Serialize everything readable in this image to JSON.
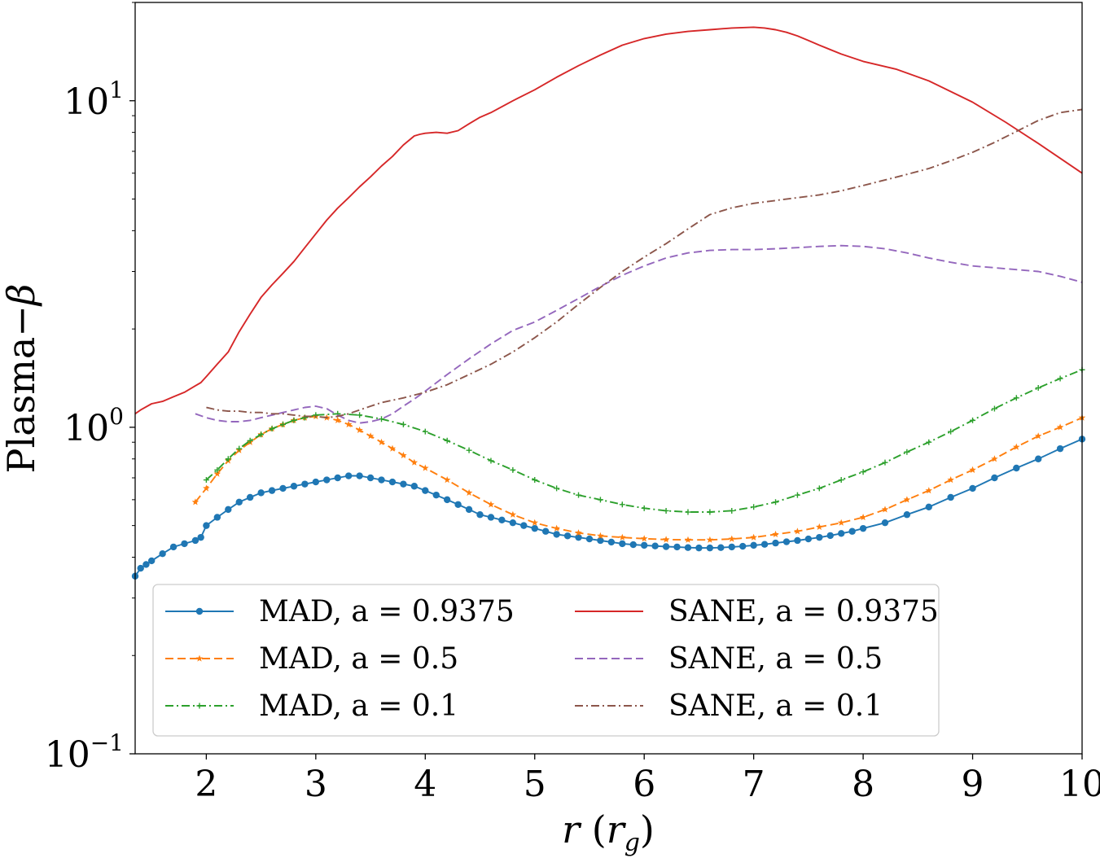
{
  "chart_data": {
    "type": "line",
    "xlabel": "r (r_g)",
    "ylabel": "Plasma−β",
    "xlim": [
      1.35,
      10
    ],
    "ylim": [
      0.1,
      20
    ],
    "yscale": "log",
    "xticks": [
      "2",
      "3",
      "4",
      "5",
      "6",
      "7",
      "8",
      "9",
      "10"
    ],
    "yticks": [
      {
        "base": "10",
        "exp": "1",
        "value": 10
      },
      {
        "base": "10",
        "exp": "0",
        "value": 1
      },
      {
        "base": "10",
        "exp": "−1",
        "value": 0.1
      }
    ],
    "grid": false,
    "legend": {
      "position": "lower-center",
      "columns": 2
    },
    "series": [
      {
        "name": "MAD, a = 0.9375",
        "color": "#1f77b4",
        "dash": "solid",
        "marker": "circle",
        "x": [
          1.35,
          1.4,
          1.45,
          1.5,
          1.6,
          1.7,
          1.8,
          1.9,
          1.95,
          2.0,
          2.1,
          2.2,
          2.3,
          2.4,
          2.5,
          2.6,
          2.7,
          2.8,
          2.9,
          3.0,
          3.1,
          3.2,
          3.3,
          3.4,
          3.5,
          3.6,
          3.7,
          3.8,
          3.9,
          4.0,
          4.1,
          4.2,
          4.3,
          4.4,
          4.5,
          4.6,
          4.7,
          4.8,
          4.9,
          5.0,
          5.1,
          5.2,
          5.3,
          5.4,
          5.5,
          5.6,
          5.7,
          5.8,
          5.9,
          6.0,
          6.1,
          6.2,
          6.3,
          6.4,
          6.5,
          6.6,
          6.7,
          6.8,
          6.9,
          7.0,
          7.1,
          7.2,
          7.3,
          7.4,
          7.5,
          7.6,
          7.7,
          7.8,
          7.9,
          8.0,
          8.2,
          8.4,
          8.6,
          8.8,
          9.0,
          9.2,
          9.4,
          9.6,
          9.8,
          10.0
        ],
        "y": [
          0.35,
          0.37,
          0.38,
          0.39,
          0.41,
          0.43,
          0.44,
          0.45,
          0.46,
          0.5,
          0.53,
          0.56,
          0.59,
          0.61,
          0.63,
          0.64,
          0.65,
          0.66,
          0.67,
          0.68,
          0.69,
          0.7,
          0.71,
          0.71,
          0.7,
          0.69,
          0.68,
          0.67,
          0.66,
          0.64,
          0.62,
          0.6,
          0.58,
          0.56,
          0.54,
          0.53,
          0.52,
          0.51,
          0.5,
          0.49,
          0.48,
          0.47,
          0.465,
          0.46,
          0.455,
          0.45,
          0.445,
          0.44,
          0.437,
          0.435,
          0.433,
          0.431,
          0.43,
          0.428,
          0.427,
          0.427,
          0.428,
          0.43,
          0.432,
          0.435,
          0.438,
          0.442,
          0.446,
          0.45,
          0.455,
          0.46,
          0.466,
          0.473,
          0.48,
          0.49,
          0.51,
          0.54,
          0.57,
          0.61,
          0.65,
          0.7,
          0.75,
          0.8,
          0.86,
          0.92
        ]
      },
      {
        "name": "MAD, a = 0.5",
        "color": "#ff7f0e",
        "dash": "dashed",
        "marker": "star",
        "x": [
          1.9,
          2.0,
          2.1,
          2.2,
          2.3,
          2.4,
          2.5,
          2.6,
          2.7,
          2.8,
          2.9,
          3.0,
          3.1,
          3.2,
          3.3,
          3.4,
          3.5,
          3.6,
          3.7,
          3.8,
          3.9,
          4.0,
          4.2,
          4.4,
          4.6,
          4.8,
          5.0,
          5.2,
          5.4,
          5.6,
          5.8,
          6.0,
          6.2,
          6.4,
          6.6,
          6.8,
          7.0,
          7.2,
          7.4,
          7.6,
          7.8,
          8.0,
          8.2,
          8.4,
          8.6,
          8.8,
          9.0,
          9.2,
          9.4,
          9.6,
          9.8,
          10.0
        ],
        "y": [
          0.59,
          0.65,
          0.72,
          0.79,
          0.85,
          0.9,
          0.95,
          0.99,
          1.02,
          1.05,
          1.07,
          1.08,
          1.07,
          1.05,
          1.02,
          0.98,
          0.94,
          0.9,
          0.86,
          0.82,
          0.78,
          0.75,
          0.69,
          0.63,
          0.58,
          0.54,
          0.51,
          0.49,
          0.475,
          0.465,
          0.46,
          0.456,
          0.453,
          0.452,
          0.452,
          0.455,
          0.46,
          0.47,
          0.48,
          0.495,
          0.51,
          0.53,
          0.56,
          0.6,
          0.64,
          0.69,
          0.74,
          0.8,
          0.87,
          0.94,
          1.0,
          1.07
        ]
      },
      {
        "name": "MAD, a = 0.1",
        "color": "#2ca02c",
        "dash": "dashdot",
        "marker": "plus",
        "x": [
          2.0,
          2.1,
          2.2,
          2.3,
          2.4,
          2.5,
          2.6,
          2.7,
          2.8,
          2.9,
          3.0,
          3.2,
          3.4,
          3.6,
          3.8,
          4.0,
          4.2,
          4.4,
          4.6,
          4.8,
          5.0,
          5.2,
          5.4,
          5.6,
          5.8,
          6.0,
          6.2,
          6.4,
          6.6,
          6.8,
          7.0,
          7.2,
          7.4,
          7.6,
          7.8,
          8.0,
          8.2,
          8.4,
          8.6,
          8.8,
          9.0,
          9.2,
          9.4,
          9.6,
          9.8,
          10.0
        ],
        "y": [
          0.69,
          0.74,
          0.8,
          0.86,
          0.91,
          0.95,
          0.99,
          1.02,
          1.05,
          1.07,
          1.09,
          1.1,
          1.09,
          1.06,
          1.02,
          0.97,
          0.91,
          0.85,
          0.79,
          0.74,
          0.69,
          0.65,
          0.62,
          0.6,
          0.58,
          0.565,
          0.555,
          0.55,
          0.55,
          0.555,
          0.57,
          0.59,
          0.62,
          0.65,
          0.69,
          0.73,
          0.78,
          0.84,
          0.9,
          0.97,
          1.05,
          1.14,
          1.23,
          1.32,
          1.41,
          1.5
        ]
      },
      {
        "name": "SANE, a = 0.9375",
        "color": "#d62728",
        "dash": "solid",
        "marker": "none",
        "x": [
          1.35,
          1.4,
          1.5,
          1.6,
          1.7,
          1.8,
          1.9,
          1.95,
          2.0,
          2.1,
          2.2,
          2.3,
          2.4,
          2.5,
          2.6,
          2.7,
          2.8,
          2.9,
          3.0,
          3.1,
          3.2,
          3.3,
          3.4,
          3.5,
          3.6,
          3.7,
          3.8,
          3.9,
          3.95,
          4.0,
          4.1,
          4.2,
          4.3,
          4.4,
          4.5,
          4.6,
          4.8,
          5.0,
          5.2,
          5.4,
          5.6,
          5.8,
          6.0,
          6.2,
          6.4,
          6.6,
          6.8,
          7.0,
          7.1,
          7.2,
          7.3,
          7.4,
          7.5,
          7.6,
          7.8,
          8.0,
          8.3,
          8.6,
          9.0,
          9.3,
          9.6,
          10.0
        ],
        "y": [
          1.1,
          1.13,
          1.18,
          1.2,
          1.24,
          1.28,
          1.34,
          1.37,
          1.43,
          1.56,
          1.7,
          1.96,
          2.22,
          2.5,
          2.73,
          2.96,
          3.22,
          3.55,
          3.91,
          4.31,
          4.69,
          5.05,
          5.45,
          5.85,
          6.31,
          6.75,
          7.32,
          7.8,
          7.89,
          7.95,
          8.0,
          7.95,
          8.1,
          8.5,
          8.9,
          9.2,
          10.0,
          10.8,
          11.8,
          12.8,
          13.8,
          14.8,
          15.5,
          16.0,
          16.3,
          16.5,
          16.7,
          16.8,
          16.7,
          16.5,
          16.2,
          15.8,
          15.3,
          14.8,
          13.9,
          13.2,
          12.5,
          11.5,
          9.9,
          8.6,
          7.4,
          6.0
        ]
      },
      {
        "name": "SANE, a = 0.5",
        "color": "#9467bd",
        "dash": "dashed",
        "marker": "none",
        "x": [
          1.9,
          2.0,
          2.1,
          2.2,
          2.3,
          2.4,
          2.5,
          2.6,
          2.7,
          2.8,
          2.9,
          3.0,
          3.1,
          3.2,
          3.3,
          3.4,
          3.5,
          3.6,
          3.7,
          3.8,
          3.9,
          4.0,
          4.2,
          4.4,
          4.6,
          4.8,
          5.0,
          5.2,
          5.4,
          5.6,
          5.8,
          6.0,
          6.2,
          6.4,
          6.6,
          6.8,
          7.0,
          7.2,
          7.4,
          7.6,
          7.8,
          8.0,
          8.2,
          8.4,
          8.6,
          8.8,
          9.0,
          9.2,
          9.4,
          9.6,
          9.8,
          10.0
        ],
        "y": [
          1.1,
          1.07,
          1.05,
          1.04,
          1.04,
          1.05,
          1.07,
          1.09,
          1.11,
          1.13,
          1.15,
          1.16,
          1.14,
          1.09,
          1.05,
          1.03,
          1.04,
          1.06,
          1.1,
          1.16,
          1.22,
          1.29,
          1.45,
          1.62,
          1.8,
          1.98,
          2.1,
          2.28,
          2.48,
          2.7,
          2.92,
          3.12,
          3.3,
          3.42,
          3.48,
          3.5,
          3.5,
          3.52,
          3.55,
          3.58,
          3.6,
          3.58,
          3.52,
          3.42,
          3.3,
          3.2,
          3.12,
          3.08,
          3.04,
          3.0,
          2.9,
          2.78
        ]
      },
      {
        "name": "SANE, a = 0.1",
        "color": "#8c564b",
        "dash": "dashdot",
        "marker": "none",
        "x": [
          2.0,
          2.1,
          2.2,
          2.3,
          2.4,
          2.5,
          2.6,
          2.7,
          2.8,
          2.9,
          3.0,
          3.1,
          3.2,
          3.3,
          3.4,
          3.5,
          3.6,
          3.8,
          4.0,
          4.2,
          4.4,
          4.6,
          4.8,
          5.0,
          5.2,
          5.4,
          5.6,
          5.8,
          6.0,
          6.2,
          6.4,
          6.6,
          6.8,
          7.0,
          7.2,
          7.4,
          7.6,
          7.8,
          8.0,
          8.2,
          8.4,
          8.6,
          8.8,
          9.0,
          9.2,
          9.4,
          9.6,
          9.8,
          10.0
        ],
        "y": [
          1.15,
          1.13,
          1.12,
          1.12,
          1.11,
          1.11,
          1.1,
          1.1,
          1.09,
          1.08,
          1.08,
          1.07,
          1.08,
          1.1,
          1.13,
          1.16,
          1.19,
          1.23,
          1.28,
          1.35,
          1.45,
          1.56,
          1.7,
          1.88,
          2.1,
          2.38,
          2.68,
          3.0,
          3.32,
          3.65,
          4.05,
          4.48,
          4.7,
          4.85,
          4.95,
          5.05,
          5.15,
          5.3,
          5.5,
          5.72,
          5.95,
          6.2,
          6.55,
          6.95,
          7.45,
          8.05,
          8.7,
          9.2,
          9.4
        ]
      }
    ]
  }
}
